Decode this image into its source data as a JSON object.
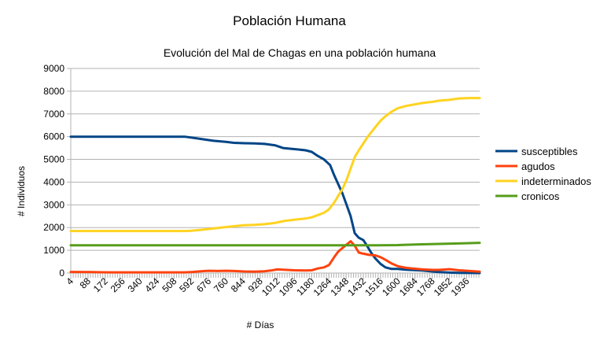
{
  "chart_data": {
    "type": "line",
    "title": "Población Humana",
    "subtitle": "Evolución del Mal de Chagas en una población humana",
    "xlabel": "# Días",
    "ylabel": "# Individuos",
    "ylim": [
      0,
      9000
    ],
    "yticks": [
      0,
      1000,
      2000,
      3000,
      4000,
      5000,
      6000,
      7000,
      8000,
      9000
    ],
    "xlim": [
      4,
      2000
    ],
    "xticks": [
      4,
      88,
      172,
      256,
      340,
      424,
      508,
      592,
      676,
      760,
      844,
      928,
      1012,
      1096,
      1180,
      1264,
      1348,
      1432,
      1516,
      1600,
      1684,
      1768,
      1852,
      1936
    ],
    "grid": true,
    "legend_position": "right",
    "series": [
      {
        "name": "susceptibles",
        "color": "#004586",
        "x": [
          4,
          100,
          200,
          300,
          400,
          500,
          560,
          600,
          640,
          700,
          760,
          800,
          850,
          900,
          950,
          1000,
          1040,
          1100,
          1150,
          1180,
          1210,
          1240,
          1270,
          1290,
          1310,
          1330,
          1350,
          1370,
          1390,
          1410,
          1432,
          1450,
          1470,
          1490,
          1516,
          1540,
          1570,
          1600,
          1640,
          1680,
          1720,
          1768,
          1800,
          1852,
          1900,
          1950,
          2000
        ],
        "values": [
          6000,
          6000,
          6000,
          6000,
          6000,
          6000,
          6000,
          5950,
          5900,
          5820,
          5770,
          5730,
          5710,
          5700,
          5680,
          5620,
          5500,
          5450,
          5400,
          5330,
          5150,
          5000,
          4750,
          4300,
          3900,
          3500,
          3000,
          2500,
          1750,
          1550,
          1450,
          1200,
          900,
          650,
          400,
          250,
          180,
          180,
          150,
          130,
          110,
          70,
          40,
          20,
          10,
          5,
          0
        ]
      },
      {
        "name": "agudos",
        "color": "#ff420e",
        "x": [
          4,
          100,
          200,
          300,
          400,
          500,
          560,
          600,
          640,
          676,
          720,
          760,
          800,
          850,
          900,
          950,
          980,
          1012,
          1040,
          1096,
          1150,
          1180,
          1210,
          1240,
          1264,
          1290,
          1310,
          1330,
          1350,
          1370,
          1390,
          1410,
          1432,
          1460,
          1490,
          1516,
          1540,
          1570,
          1600,
          1640,
          1684,
          1720,
          1768,
          1800,
          1852,
          1900,
          1950,
          2000
        ],
        "values": [
          50,
          40,
          30,
          30,
          30,
          30,
          30,
          50,
          80,
          100,
          90,
          100,
          90,
          70,
          60,
          80,
          110,
          160,
          150,
          120,
          110,
          120,
          200,
          250,
          350,
          700,
          950,
          1100,
          1250,
          1400,
          1200,
          900,
          850,
          800,
          780,
          700,
          580,
          420,
          300,
          230,
          190,
          160,
          140,
          140,
          170,
          120,
          90,
          60
        ]
      },
      {
        "name": "indeterminados",
        "color": "#ffd320",
        "x": [
          4,
          100,
          200,
          300,
          400,
          500,
          560,
          592,
          640,
          700,
          760,
          800,
          850,
          900,
          950,
          1000,
          1050,
          1100,
          1150,
          1180,
          1210,
          1240,
          1264,
          1290,
          1310,
          1330,
          1350,
          1370,
          1390,
          1410,
          1432,
          1450,
          1480,
          1516,
          1540,
          1570,
          1600,
          1640,
          1684,
          1720,
          1768,
          1800,
          1852,
          1900,
          1950,
          2000
        ],
        "values": [
          1850,
          1850,
          1850,
          1850,
          1850,
          1850,
          1850,
          1860,
          1900,
          1960,
          2020,
          2060,
          2100,
          2120,
          2150,
          2200,
          2300,
          2350,
          2400,
          2450,
          2550,
          2650,
          2800,
          3100,
          3400,
          3700,
          4100,
          4600,
          5100,
          5400,
          5700,
          5950,
          6300,
          6700,
          6900,
          7100,
          7250,
          7350,
          7420,
          7480,
          7530,
          7580,
          7620,
          7680,
          7700,
          7700
        ]
      },
      {
        "name": "cronicos",
        "color": "#579d1c",
        "x": [
          4,
          200,
          400,
          600,
          800,
          1000,
          1200,
          1400,
          1500,
          1600,
          1700,
          1800,
          1900,
          2000
        ],
        "values": [
          1220,
          1220,
          1220,
          1220,
          1220,
          1220,
          1220,
          1220,
          1220,
          1230,
          1260,
          1280,
          1300,
          1330
        ]
      }
    ]
  }
}
